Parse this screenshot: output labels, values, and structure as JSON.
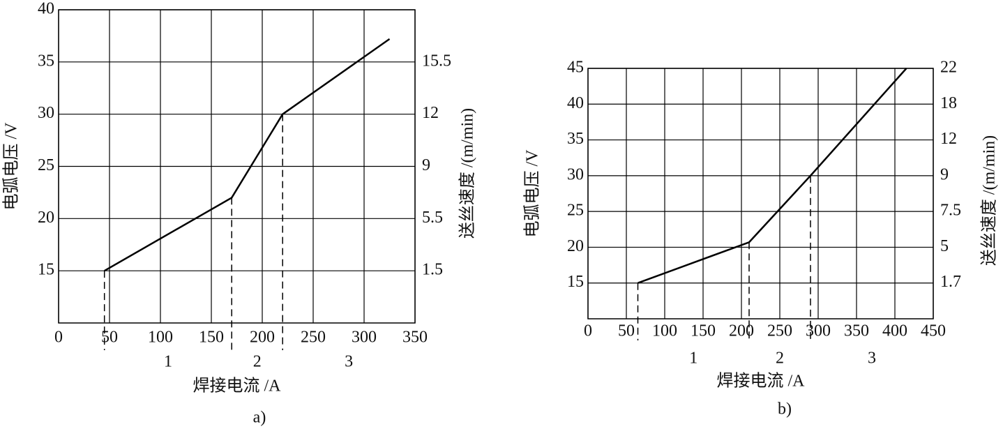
{
  "chart_data": [
    {
      "type": "line",
      "caption": "a)",
      "xlabel": "焊接电流 /A",
      "ylabel": "电弧电压 /V",
      "y2label": "送丝速度 /(m/min)",
      "x": [
        45,
        170,
        220,
        325
      ],
      "series": [
        {
          "color": "#000000",
          "values": [
            15,
            22,
            30,
            37.2
          ]
        }
      ],
      "xlim": [
        0,
        350
      ],
      "xticks": [
        0,
        50,
        100,
        150,
        200,
        250,
        300,
        350
      ],
      "ylim": [
        10,
        40
      ],
      "yticks": [
        15,
        20,
        25,
        30,
        35,
        40
      ],
      "y2ticks": [
        1.5,
        5.5,
        9,
        12,
        15.5
      ],
      "region_labels": [
        "1",
        "2",
        "3"
      ],
      "grid": true
    },
    {
      "type": "line",
      "caption": "b)",
      "xlabel": "焊接电流 /A",
      "ylabel": "电弧电压 /V",
      "y2label": "送丝速度 /(m/min)",
      "x": [
        65,
        210,
        290,
        415
      ],
      "series": [
        {
          "color": "#000000",
          "values": [
            15,
            20.7,
            30,
            45
          ]
        }
      ],
      "xlim": [
        0,
        450
      ],
      "xticks": [
        0,
        50,
        100,
        150,
        200,
        250,
        300,
        350,
        400,
        450
      ],
      "ylim": [
        10,
        45
      ],
      "yticks": [
        15,
        20,
        25,
        30,
        35,
        40,
        45
      ],
      "y2ticks": [
        1.7,
        5,
        7.5,
        9,
        12,
        18,
        22
      ],
      "region_labels": [
        "1",
        "2",
        "3"
      ],
      "grid": true
    }
  ]
}
